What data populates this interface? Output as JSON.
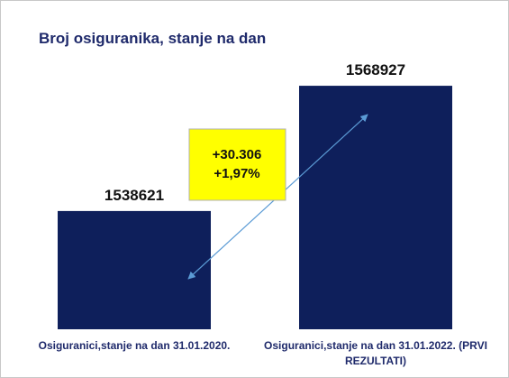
{
  "chart_data": {
    "type": "bar",
    "title": "Broj osiguranika, stanje na dan",
    "categories": [
      [
        "Osiguranici,stanje na dan 31.01.2020."
      ],
      [
        "Osiguranici,stanje na dan 31.01.2022. (PRVI",
        "REZULTATI)"
      ]
    ],
    "values": [
      1538621,
      1568927
    ],
    "value_labels": [
      "1538621",
      "1568927"
    ],
    "ylim": [
      1510000,
      1572000
    ],
    "grid": false,
    "colors": {
      "bar": "#0e1f5b",
      "callout_fill": "#ffff00",
      "callout_border": "#b0b0b0",
      "arrow": "#5b9bd5"
    },
    "annotation": {
      "lines": [
        "+30.306",
        "+1,97%"
      ]
    }
  }
}
